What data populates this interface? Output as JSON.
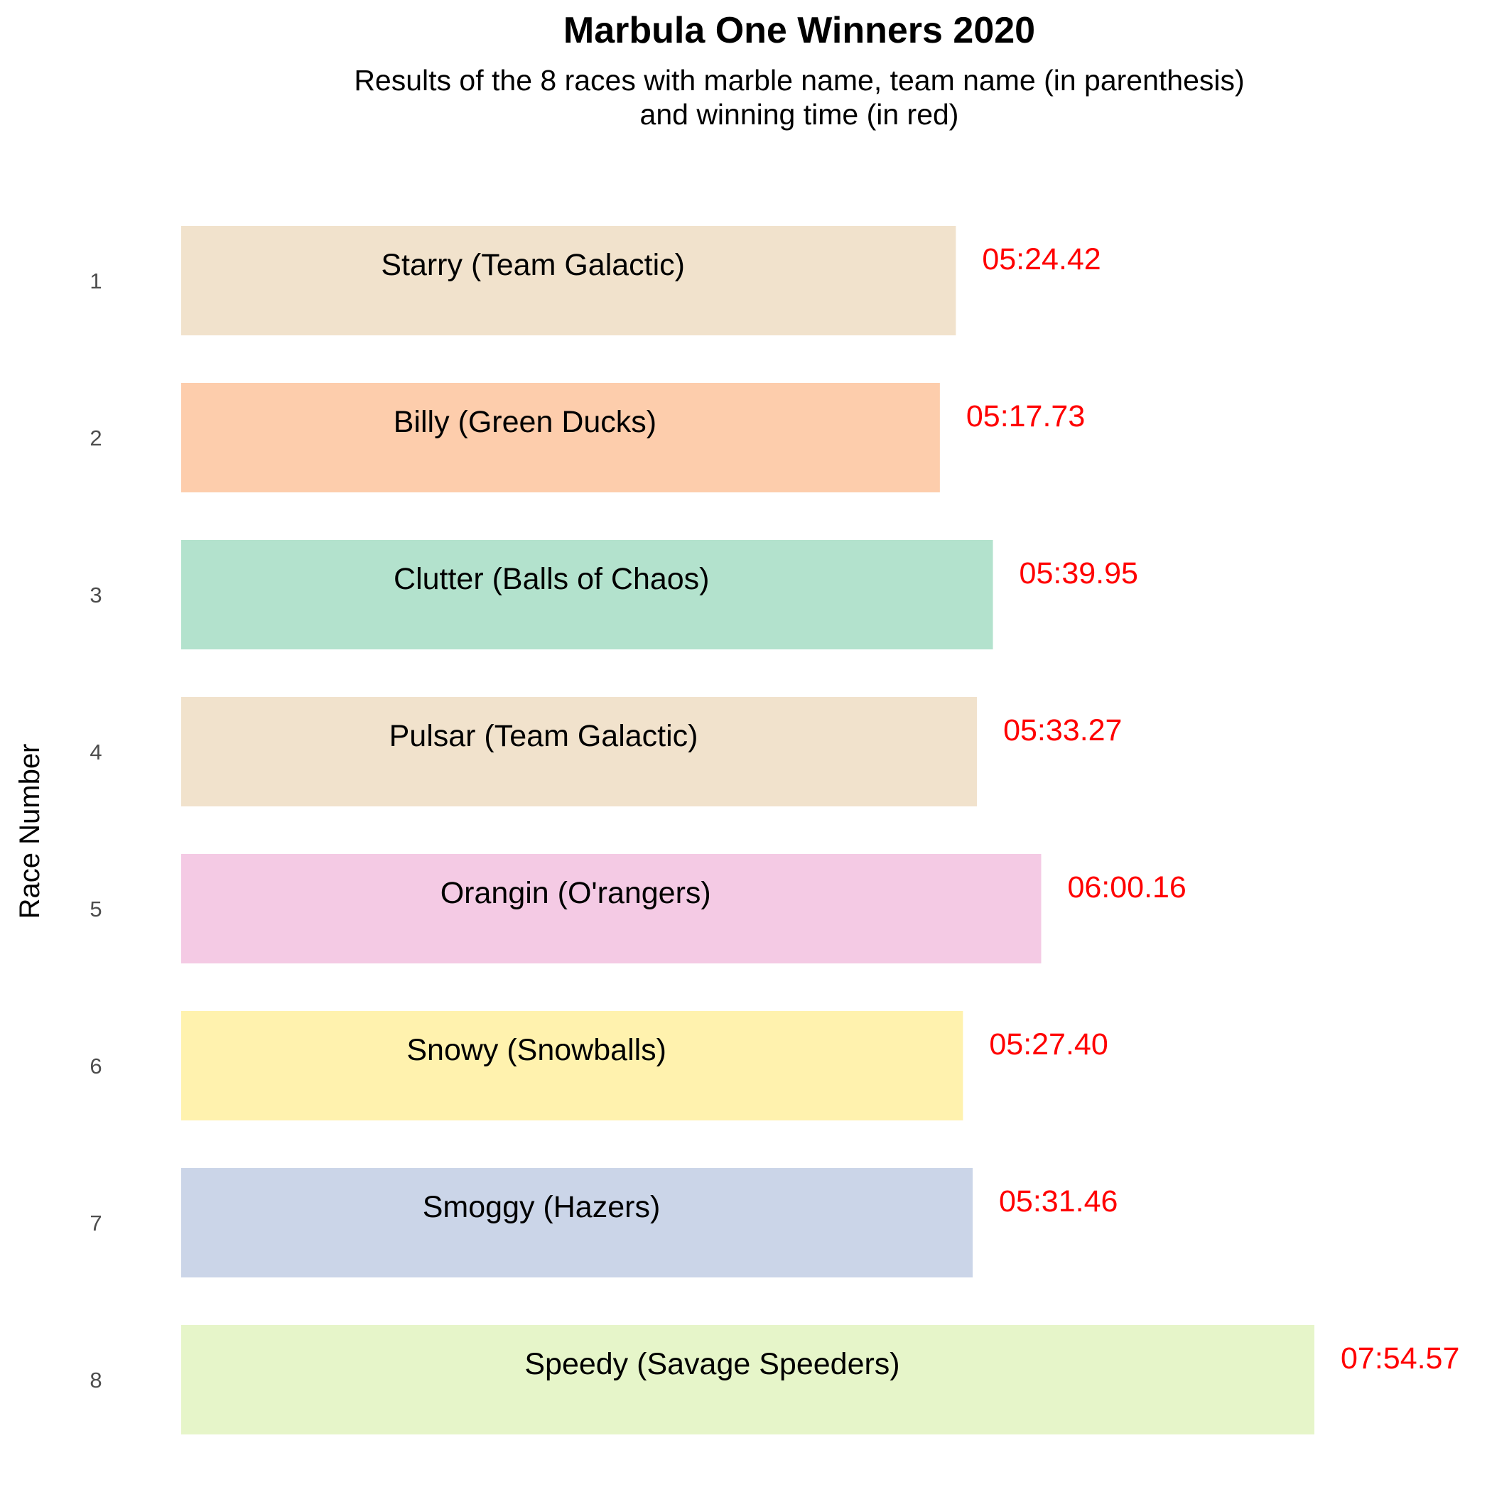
{
  "chart_data": {
    "type": "bar",
    "orientation": "horizontal",
    "title": "Marbula One Winners 2020",
    "subtitle_lines": [
      "Results of the 8 races with marble name, team name (in parenthesis)",
      "and winning time (in red)"
    ],
    "xlabel": "",
    "ylabel": "Race Number",
    "grid": false,
    "legend": "none",
    "xlim": [
      0,
      474.57
    ],
    "label_color": "#ff0000",
    "categories": [
      "1",
      "2",
      "3",
      "4",
      "5",
      "6",
      "7",
      "8"
    ],
    "values": [
      324.42,
      317.73,
      339.95,
      333.27,
      360.16,
      327.4,
      331.46,
      474.57
    ],
    "bar_labels": [
      "Starry (Team Galactic)",
      "Billy (Green Ducks)",
      "Clutter (Balls of Chaos)",
      "Pulsar (Team Galactic)",
      "Orangin (O'rangers)",
      "Snowy (Snowballs)",
      "Smoggy (Hazers)",
      "Speedy (Savage Speeders)"
    ],
    "value_labels": [
      "05:24.42",
      "05:17.73",
      "05:39.95",
      "05:33.27",
      "06:00.16",
      "05:27.40",
      "05:31.46",
      "07:54.57"
    ],
    "teams": [
      "Team Galactic",
      "Green Ducks",
      "Balls of Chaos",
      "Team Galactic",
      "O'rangers",
      "Snowballs",
      "Hazers",
      "Savage Speeders"
    ],
    "colors": [
      "#f1e2cc",
      "#fdcdac",
      "#b3e2cd",
      "#f1e2cc",
      "#f4cae4",
      "#fff2ae",
      "#cbd5e8",
      "#e6f5c9"
    ]
  }
}
